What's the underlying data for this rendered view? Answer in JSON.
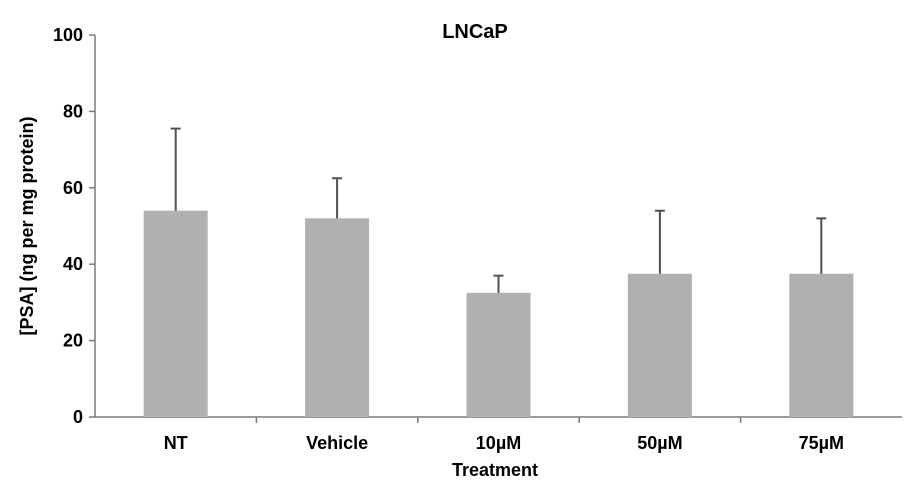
{
  "chart_data": {
    "type": "bar",
    "title": "LNCaP",
    "xlabel": "Treatment",
    "ylabel": "[PSA] (ng per mg protein)",
    "categories": [
      "NT",
      "Vehicle",
      "10µM",
      "50µM",
      "75µM"
    ],
    "values": [
      54,
      52,
      32.5,
      37.5,
      37.5
    ],
    "error_upper": [
      75.5,
      62.5,
      37,
      54,
      52
    ],
    "ylim": [
      0,
      100
    ],
    "yticks": [
      0,
      20,
      40,
      60,
      80,
      100
    ],
    "grid": false,
    "legend": "none",
    "bar_color": "#b0b0b0",
    "error_color": "#505050"
  }
}
